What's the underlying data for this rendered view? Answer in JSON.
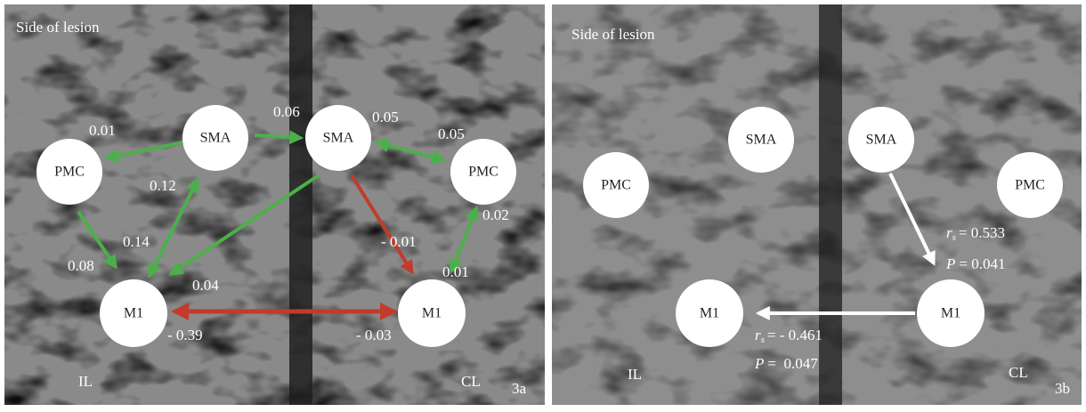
{
  "panels": [
    {
      "caption": "Side of lesion",
      "left_side": "IL",
      "right_side": "CL",
      "panel_label": "3a",
      "nodes": [
        "SMA",
        "SMA",
        "PMC",
        "PMC",
        "M1",
        "M1"
      ],
      "edge_labels": [
        "0.01",
        "0.06",
        "0.05",
        "0.05",
        "0.12",
        "0.14",
        "0.08",
        "0.04",
        "- 0.01",
        "0.02",
        "0.01",
        "- 0.39",
        "- 0.03"
      ]
    },
    {
      "caption": "Side of lesion",
      "left_side": "IL",
      "right_side": "CL",
      "panel_label": "3b",
      "nodes": [
        "SMA",
        "SMA",
        "PMC",
        "PMC",
        "M1",
        "M1"
      ],
      "stats": [
        {
          "symbol": "r",
          "subscript": "s",
          "value": "= 0.533"
        },
        {
          "symbol": "P",
          "value": "= 0.041"
        },
        {
          "symbol": "r",
          "subscript": "s",
          "value": "= - 0.461"
        },
        {
          "symbol": "P",
          "value": "=  0.047"
        }
      ]
    }
  ]
}
